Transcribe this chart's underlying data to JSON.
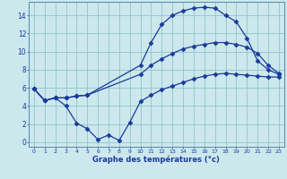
{
  "xlabel": "Graphe des températures (°c)",
  "bg_color": "#cce8ec",
  "line_color": "#1a3a9c",
  "grid_color": "#90c4cc",
  "spine_color": "#5588aa",
  "ylim": [
    -0.5,
    15.5
  ],
  "xlim": [
    -0.5,
    23.5
  ],
  "yticks": [
    0,
    2,
    4,
    6,
    8,
    10,
    12,
    14
  ],
  "xticks": [
    0,
    1,
    2,
    3,
    4,
    5,
    6,
    7,
    8,
    9,
    10,
    11,
    12,
    13,
    14,
    15,
    16,
    17,
    18,
    19,
    20,
    21,
    22,
    23
  ],
  "line1_x": [
    0,
    1,
    2,
    3,
    4,
    5,
    10,
    11,
    12,
    13,
    14,
    15,
    16,
    17,
    18,
    19,
    20,
    21,
    22,
    23
  ],
  "line1_y": [
    5.9,
    4.6,
    4.9,
    4.9,
    5.1,
    5.2,
    8.5,
    11.0,
    13.0,
    14.0,
    14.5,
    14.8,
    14.9,
    14.8,
    14.0,
    13.3,
    11.5,
    9.0,
    8.0,
    7.5
  ],
  "line2_x": [
    0,
    1,
    2,
    3,
    4,
    5,
    10,
    11,
    12,
    13,
    14,
    15,
    16,
    17,
    18,
    19,
    20,
    21,
    22,
    23
  ],
  "line2_y": [
    5.9,
    4.6,
    4.9,
    4.9,
    5.1,
    5.2,
    7.5,
    8.5,
    9.2,
    9.8,
    10.3,
    10.6,
    10.8,
    11.0,
    11.0,
    10.8,
    10.5,
    9.8,
    8.5,
    7.6
  ],
  "line3_x": [
    0,
    1,
    2,
    3,
    4,
    5,
    6,
    7,
    8,
    9,
    10,
    11,
    12,
    13,
    14,
    15,
    16,
    17,
    18,
    19,
    20,
    21,
    22,
    23
  ],
  "line3_y": [
    5.9,
    4.6,
    4.9,
    4.0,
    2.1,
    1.5,
    0.3,
    0.8,
    0.2,
    2.2,
    4.5,
    5.2,
    5.8,
    6.2,
    6.6,
    7.0,
    7.3,
    7.5,
    7.6,
    7.5,
    7.4,
    7.3,
    7.2,
    7.2
  ]
}
